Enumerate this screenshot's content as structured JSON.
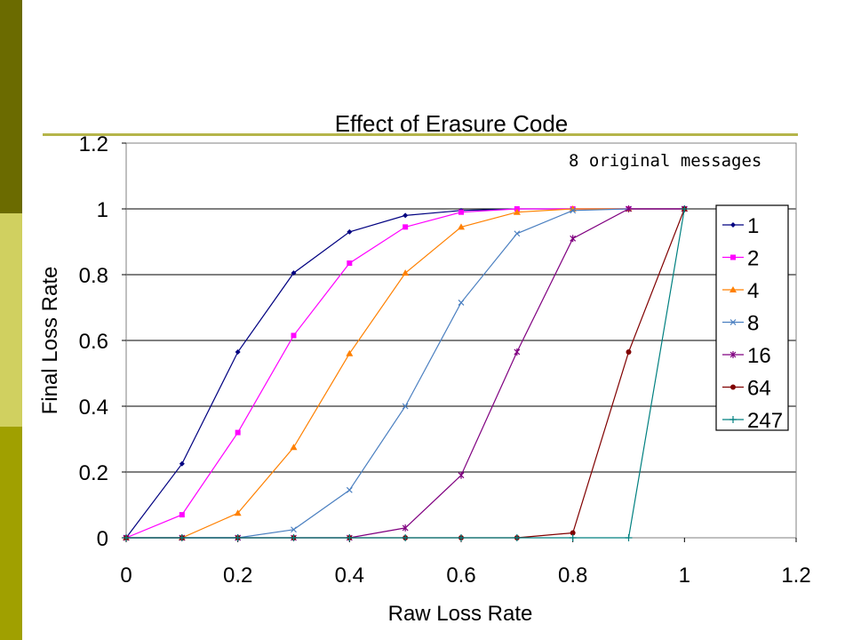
{
  "colors": {
    "sidebar_dark": "#6b6b00",
    "sidebar_light": "#d0d060",
    "sidebar_mid": "#a0a000",
    "rule": "#b5b54a"
  },
  "chart_data": {
    "type": "line",
    "title": "Effect of Erasure Code",
    "xlabel": "Raw Loss Rate",
    "ylabel": "Final Loss Rate",
    "annotation": "8 original messages",
    "xlim": [
      0,
      1.2
    ],
    "ylim": [
      0,
      1.2
    ],
    "x_ticks": [
      "0",
      "0.2",
      "0.4",
      "0.6",
      "0.8",
      "1",
      "1.2"
    ],
    "y_ticks": [
      "0",
      "0.2",
      "0.4",
      "0.6",
      "0.8",
      "1",
      "1.2"
    ],
    "grid": "horizontal",
    "legend_position": "right",
    "x": [
      0,
      0.1,
      0.2,
      0.3,
      0.4,
      0.5,
      0.6,
      0.7,
      0.8,
      0.9,
      1.0
    ],
    "series": [
      {
        "name": "1",
        "color": "#000080",
        "marker": "diamond",
        "values": [
          0,
          0.225,
          0.565,
          0.805,
          0.93,
          0.98,
          0.995,
          1.0,
          1.0,
          1.0,
          1.0
        ]
      },
      {
        "name": "2",
        "color": "#ff00ff",
        "marker": "square",
        "values": [
          0,
          0.07,
          0.32,
          0.615,
          0.835,
          0.945,
          0.99,
          1.0,
          1.0,
          1.0,
          1.0
        ]
      },
      {
        "name": "4",
        "color": "#ff8000",
        "marker": "triangle",
        "values": [
          0,
          0.0,
          0.075,
          0.275,
          0.56,
          0.805,
          0.945,
          0.99,
          1.0,
          1.0,
          1.0
        ]
      },
      {
        "name": "8",
        "color": "#4a7fc0",
        "marker": "x",
        "values": [
          0,
          0.0,
          0.0,
          0.025,
          0.145,
          0.4,
          0.715,
          0.925,
          0.995,
          1.0,
          1.0
        ]
      },
      {
        "name": "16",
        "color": "#800080",
        "marker": "star",
        "values": [
          0,
          0.0,
          0.0,
          0.0,
          0.0,
          0.03,
          0.19,
          0.565,
          0.91,
          1.0,
          1.0
        ]
      },
      {
        "name": "64",
        "color": "#800000",
        "marker": "circle",
        "values": [
          0,
          0.0,
          0.0,
          0.0,
          0.0,
          0.0,
          0.0,
          0.0,
          0.015,
          0.565,
          1.0
        ]
      },
      {
        "name": "247",
        "color": "#008080",
        "marker": "plus",
        "values": [
          0,
          0.0,
          0.0,
          0.0,
          0.0,
          0.0,
          0.0,
          0.0,
          0.0,
          0.0,
          1.0
        ]
      }
    ]
  }
}
